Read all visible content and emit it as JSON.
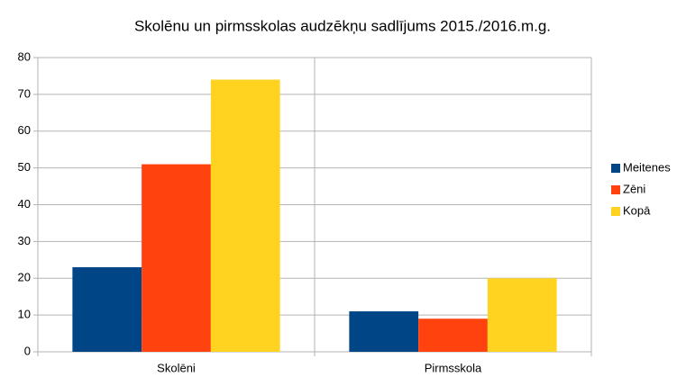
{
  "chart_data": {
    "type": "bar",
    "title": "Skolēnu un pirmsskolas audzēkņu sadlījums 2015./2016.m.g.",
    "categories": [
      "Skolēni",
      "Pirmsskola"
    ],
    "series": [
      {
        "name": "Meitenes",
        "color": "#004586",
        "values": [
          23,
          11
        ]
      },
      {
        "name": "Zēni",
        "color": "#ff420e",
        "values": [
          51,
          9
        ]
      },
      {
        "name": "Kopā",
        "color": "#ffd320",
        "values": [
          74,
          20
        ]
      }
    ],
    "ylim": [
      0,
      80
    ],
    "yticks": [
      0,
      10,
      20,
      30,
      40,
      50,
      60,
      70,
      80
    ],
    "grid": true,
    "legend": "right"
  }
}
